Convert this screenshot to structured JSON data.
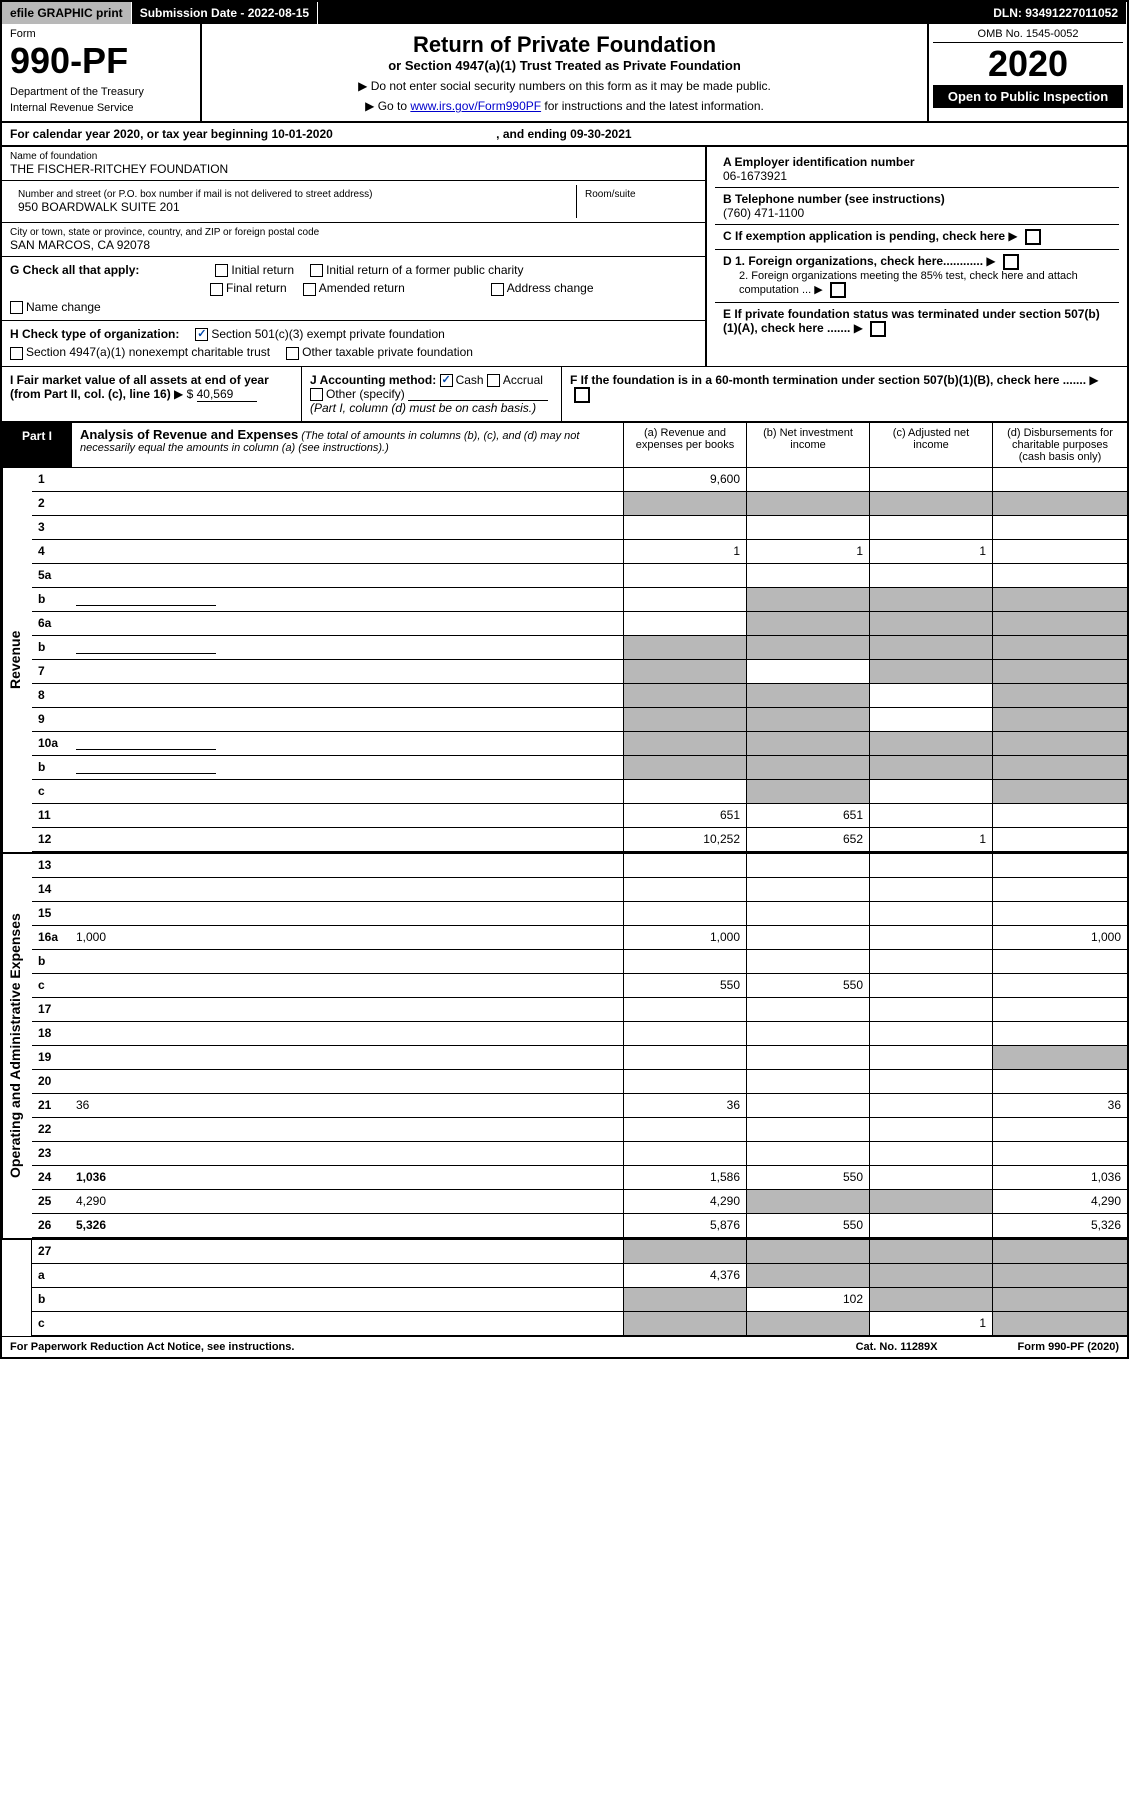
{
  "top": {
    "efile": "efile GRAPHIC print",
    "sub_label": "Submission Date - 2022-08-15",
    "dln": "DLN: 93491227011052"
  },
  "header": {
    "form_label": "Form",
    "form_num": "990-PF",
    "dept1": "Department of the Treasury",
    "dept2": "Internal Revenue Service",
    "title": "Return of Private Foundation",
    "subtitle": "or Section 4947(a)(1) Trust Treated as Private Foundation",
    "note1": "▶ Do not enter social security numbers on this form as it may be made public.",
    "note2_pre": "▶ Go to ",
    "note2_link": "www.irs.gov/Form990PF",
    "note2_post": " for instructions and the latest information.",
    "omb": "OMB No. 1545-0052",
    "year": "2020",
    "open": "Open to Public Inspection"
  },
  "cal": {
    "text": "For calendar year 2020, or tax year beginning 10-01-2020",
    "ending": ", and ending 09-30-2021"
  },
  "info": {
    "name_label": "Name of foundation",
    "name": "THE FISCHER-RITCHEY FOUNDATION",
    "addr_label": "Number and street (or P.O. box number if mail is not delivered to street address)",
    "addr": "950 BOARDWALK SUITE 201",
    "room_label": "Room/suite",
    "city_label": "City or town, state or province, country, and ZIP or foreign postal code",
    "city": "SAN MARCOS, CA  92078",
    "a_label": "A Employer identification number",
    "a_val": "06-1673921",
    "b_label": "B Telephone number (see instructions)",
    "b_val": "(760) 471-1100",
    "c_label": "C If exemption application is pending, check here",
    "d1": "D 1. Foreign organizations, check here............",
    "d2": "2. Foreign organizations meeting the 85% test, check here and attach computation ...",
    "e_label": "E  If private foundation status was terminated under section 507(b)(1)(A), check here .......",
    "f_label": "F  If the foundation is in a 60-month termination under section 507(b)(1)(B), check here .......",
    "g_label": "G Check all that apply:",
    "g_opts": [
      "Initial return",
      "Initial return of a former public charity",
      "Final return",
      "Amended return",
      "Address change",
      "Name change"
    ],
    "h_label": "H Check type of organization:",
    "h1": "Section 501(c)(3) exempt private foundation",
    "h2": "Section 4947(a)(1) nonexempt charitable trust",
    "h3": "Other taxable private foundation",
    "i_label": "I Fair market value of all assets at end of year (from Part II, col. (c), line 16)",
    "i_val": "40,569",
    "j_label": "J Accounting method:",
    "j_cash": "Cash",
    "j_accrual": "Accrual",
    "j_other": "Other (specify)",
    "j_note": "(Part I, column (d) must be on cash basis.)"
  },
  "part1": {
    "label": "Part I",
    "title": "Analysis of Revenue and Expenses",
    "title_note": "(The total of amounts in columns (b), (c), and (d) may not necessarily equal the amounts in column (a) (see instructions).)",
    "cols": {
      "a": "(a)   Revenue and expenses per books",
      "b": "(b)   Net investment income",
      "c": "(c)   Adjusted net income",
      "d": "(d)  Disbursements for charitable purposes (cash basis only)"
    }
  },
  "sections": {
    "revenue": "Revenue",
    "expenses": "Operating and Administrative Expenses"
  },
  "lines": [
    {
      "n": "1",
      "d": "",
      "a": "9,600",
      "b": "",
      "c": "",
      "sh": [
        "",
        "",
        "",
        ""
      ]
    },
    {
      "n": "2",
      "d": "",
      "a": "",
      "b": "",
      "c": "",
      "sh": [
        "s",
        "s",
        "s",
        "s"
      ]
    },
    {
      "n": "3",
      "d": "",
      "a": "",
      "b": "",
      "c": "",
      "sh": [
        "",
        "",
        "",
        ""
      ]
    },
    {
      "n": "4",
      "d": "",
      "a": "1",
      "b": "1",
      "c": "1",
      "sh": [
        "",
        "",
        "",
        ""
      ]
    },
    {
      "n": "5a",
      "d": "",
      "a": "",
      "b": "",
      "c": "",
      "sh": [
        "",
        "",
        "",
        ""
      ]
    },
    {
      "n": "b",
      "d": "",
      "a": "",
      "b": "",
      "c": "",
      "sh": [
        "",
        "s",
        "s",
        "s"
      ],
      "blank": true
    },
    {
      "n": "6a",
      "d": "",
      "a": "",
      "b": "",
      "c": "",
      "sh": [
        "",
        "s",
        "s",
        "s"
      ]
    },
    {
      "n": "b",
      "d": "",
      "a": "",
      "b": "",
      "c": "",
      "sh": [
        "s",
        "s",
        "s",
        "s"
      ],
      "blank": true
    },
    {
      "n": "7",
      "d": "",
      "a": "",
      "b": "",
      "c": "",
      "sh": [
        "s",
        "",
        "s",
        "s"
      ]
    },
    {
      "n": "8",
      "d": "",
      "a": "",
      "b": "",
      "c": "",
      "sh": [
        "s",
        "s",
        "",
        "s"
      ]
    },
    {
      "n": "9",
      "d": "",
      "a": "",
      "b": "",
      "c": "",
      "sh": [
        "s",
        "s",
        "",
        "s"
      ]
    },
    {
      "n": "10a",
      "d": "",
      "a": "",
      "b": "",
      "c": "",
      "sh": [
        "s",
        "s",
        "s",
        "s"
      ],
      "blank": true
    },
    {
      "n": "b",
      "d": "",
      "a": "",
      "b": "",
      "c": "",
      "sh": [
        "s",
        "s",
        "s",
        "s"
      ],
      "blank": true
    },
    {
      "n": "c",
      "d": "",
      "a": "",
      "b": "",
      "c": "",
      "sh": [
        "",
        "s",
        "",
        "s"
      ]
    },
    {
      "n": "11",
      "d": "",
      "a": "651",
      "b": "651",
      "c": "",
      "sh": [
        "",
        "",
        "",
        ""
      ]
    },
    {
      "n": "12",
      "d": "",
      "a": "10,252",
      "b": "652",
      "c": "1",
      "sh": [
        "",
        "",
        "",
        ""
      ],
      "bold": true
    }
  ],
  "explines": [
    {
      "n": "13",
      "d": "",
      "a": "",
      "b": "",
      "c": "",
      "sh": [
        "",
        "",
        "",
        ""
      ]
    },
    {
      "n": "14",
      "d": "",
      "a": "",
      "b": "",
      "c": "",
      "sh": [
        "",
        "",
        "",
        ""
      ]
    },
    {
      "n": "15",
      "d": "",
      "a": "",
      "b": "",
      "c": "",
      "sh": [
        "",
        "",
        "",
        ""
      ]
    },
    {
      "n": "16a",
      "d": "1,000",
      "a": "1,000",
      "b": "",
      "c": "",
      "sh": [
        "",
        "",
        "",
        ""
      ]
    },
    {
      "n": "b",
      "d": "",
      "a": "",
      "b": "",
      "c": "",
      "sh": [
        "",
        "",
        "",
        ""
      ]
    },
    {
      "n": "c",
      "d": "",
      "a": "550",
      "b": "550",
      "c": "",
      "sh": [
        "",
        "",
        "",
        ""
      ]
    },
    {
      "n": "17",
      "d": "",
      "a": "",
      "b": "",
      "c": "",
      "sh": [
        "",
        "",
        "",
        ""
      ]
    },
    {
      "n": "18",
      "d": "",
      "a": "",
      "b": "",
      "c": "",
      "sh": [
        "",
        "",
        "",
        ""
      ]
    },
    {
      "n": "19",
      "d": "",
      "a": "",
      "b": "",
      "c": "",
      "sh": [
        "",
        "",
        "",
        "s"
      ]
    },
    {
      "n": "20",
      "d": "",
      "a": "",
      "b": "",
      "c": "",
      "sh": [
        "",
        "",
        "",
        ""
      ]
    },
    {
      "n": "21",
      "d": "36",
      "a": "36",
      "b": "",
      "c": "",
      "sh": [
        "",
        "",
        "",
        ""
      ]
    },
    {
      "n": "22",
      "d": "",
      "a": "",
      "b": "",
      "c": "",
      "sh": [
        "",
        "",
        "",
        ""
      ]
    },
    {
      "n": "23",
      "d": "",
      "a": "",
      "b": "",
      "c": "",
      "sh": [
        "",
        "",
        "",
        ""
      ]
    },
    {
      "n": "24",
      "d": "1,036",
      "a": "1,586",
      "b": "550",
      "c": "",
      "sh": [
        "",
        "",
        "",
        ""
      ],
      "bold": true
    },
    {
      "n": "25",
      "d": "4,290",
      "a": "4,290",
      "b": "",
      "c": "",
      "sh": [
        "",
        "s",
        "s",
        ""
      ]
    },
    {
      "n": "26",
      "d": "5,326",
      "a": "5,876",
      "b": "550",
      "c": "",
      "sh": [
        "",
        "",
        "",
        ""
      ],
      "bold": true
    }
  ],
  "botlines": [
    {
      "n": "27",
      "d": "",
      "a": "",
      "b": "",
      "c": "",
      "sh": [
        "s",
        "s",
        "s",
        "s"
      ]
    },
    {
      "n": "a",
      "d": "",
      "a": "4,376",
      "b": "",
      "c": "",
      "sh": [
        "",
        "s",
        "s",
        "s"
      ],
      "bold": true
    },
    {
      "n": "b",
      "d": "",
      "a": "",
      "b": "102",
      "c": "",
      "sh": [
        "s",
        "",
        "s",
        "s"
      ],
      "bold": true
    },
    {
      "n": "c",
      "d": "",
      "a": "",
      "b": "",
      "c": "1",
      "sh": [
        "s",
        "s",
        "",
        "s"
      ],
      "bold": true
    }
  ],
  "footer": {
    "left": "For Paperwork Reduction Act Notice, see instructions.",
    "mid": "Cat. No. 11289X",
    "right": "Form 990-PF (2020)"
  }
}
